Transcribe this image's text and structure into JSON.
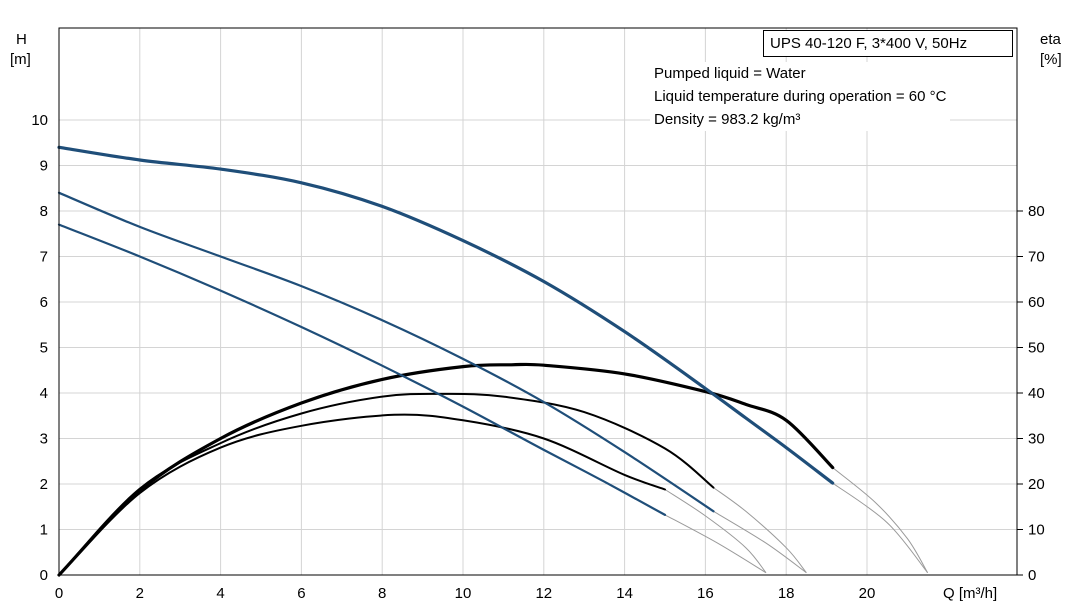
{
  "chart_data": {
    "type": "line",
    "title": "UPS 40-120 F, 3*400 V, 50Hz",
    "annotations": [
      "Pumped liquid = Water",
      "Liquid temperature during operation = 60 °C",
      "Density = 983.2 kg/m³"
    ],
    "xlabel": "Q [m³/h]",
    "ylabel_left": [
      "H",
      "[m]"
    ],
    "ylabel_right": [
      "eta",
      "[%]"
    ],
    "xlim": [
      0,
      23.5
    ],
    "ylim": [
      0,
      12
    ],
    "y2lim": [
      0,
      120
    ],
    "grid": true,
    "x_ticks": [
      0,
      2,
      4,
      6,
      8,
      10,
      12,
      14,
      16,
      18,
      20
    ],
    "y_ticks": [
      0,
      1,
      2,
      3,
      4,
      5,
      6,
      7,
      8,
      9,
      10
    ],
    "y2_ticks": [
      0,
      10,
      20,
      30,
      40,
      50,
      60,
      70,
      80
    ],
    "head_curves": [
      {
        "x": [
          0,
          2,
          4,
          6,
          8,
          10,
          12,
          14,
          16,
          17,
          18,
          19.15
        ],
        "y": [
          9.4,
          9.12,
          8.92,
          8.62,
          8.1,
          7.35,
          6.45,
          5.35,
          4.1,
          3.45,
          2.8,
          2.02
        ],
        "ext_x": [
          19.15,
          20.5,
          21.5
        ],
        "ext_y": [
          2.02,
          1.15,
          0.05
        ]
      },
      {
        "x": [
          0,
          2,
          4,
          6,
          8,
          10,
          12,
          14,
          16.2
        ],
        "y": [
          8.4,
          7.65,
          7.0,
          6.35,
          5.6,
          4.75,
          3.8,
          2.7,
          1.4
        ],
        "ext_x": [
          16.2,
          17.5,
          18.5
        ],
        "ext_y": [
          1.4,
          0.7,
          0.05
        ]
      },
      {
        "x": [
          0,
          2,
          4,
          6,
          8,
          10,
          12,
          13.5,
          15
        ],
        "y": [
          7.7,
          7.0,
          6.25,
          5.45,
          4.6,
          3.7,
          2.75,
          2.05,
          1.32
        ],
        "ext_x": [
          15,
          16.3,
          17.5
        ],
        "ext_y": [
          1.32,
          0.7,
          0.05
        ]
      }
    ],
    "eta_curves": [
      {
        "x": [
          0,
          2,
          4,
          6,
          8,
          10,
          11.2,
          12,
          14,
          16,
          17,
          18,
          19.15
        ],
        "y": [
          0,
          18.5,
          30,
          37.8,
          43,
          45.8,
          46.2,
          46.1,
          44.2,
          40.3,
          37.5,
          34.0,
          23.6
        ],
        "ext_x": [
          19.15,
          20.2,
          21.0,
          21.5
        ],
        "ext_y": [
          23.6,
          16.0,
          8.0,
          0.5
        ]
      },
      {
        "x": [
          0,
          2,
          4,
          6,
          8,
          9.5,
          11,
          13,
          15,
          16.2
        ],
        "y": [
          0,
          19,
          29,
          35.5,
          39.2,
          39.8,
          39.2,
          35.8,
          27.8,
          19.2
        ],
        "ext_x": [
          16.2,
          17.0,
          18.0,
          18.5
        ],
        "ext_y": [
          19.2,
          14.0,
          6.0,
          0.5
        ]
      },
      {
        "x": [
          0,
          2,
          4,
          6,
          8.3,
          10,
          12,
          14,
          15
        ],
        "y": [
          0,
          18,
          28,
          32.8,
          35.2,
          34.0,
          30.0,
          22.0,
          18.8
        ],
        "ext_x": [
          15,
          16.0,
          17.0,
          17.5
        ],
        "ext_y": [
          18.8,
          13.0,
          6.0,
          0.5
        ]
      }
    ],
    "colors": {
      "head": "#1f4e79",
      "eta": "#000000",
      "extension": "#9a9a9a",
      "grid": "#d4d4d4"
    }
  }
}
